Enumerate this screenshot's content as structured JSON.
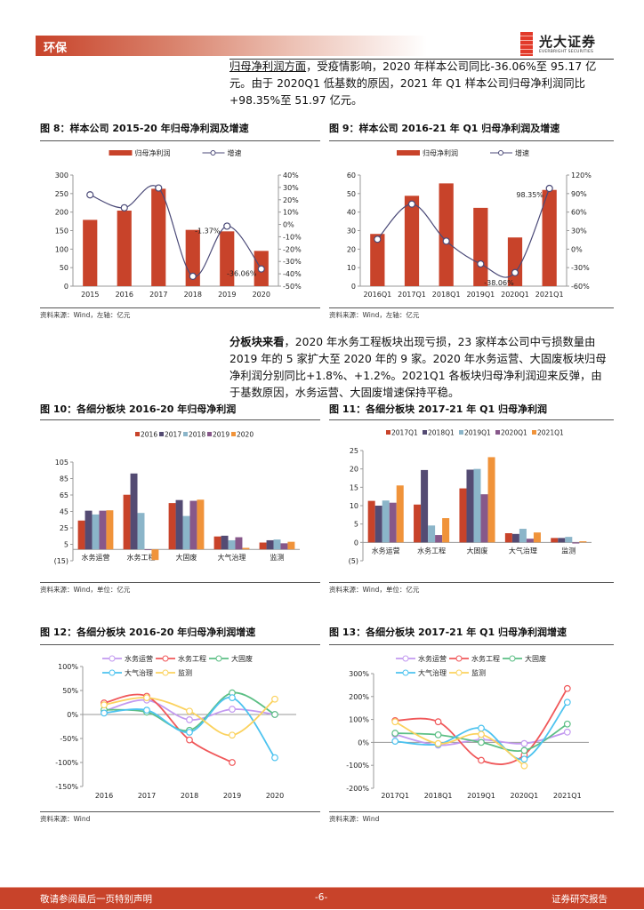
{
  "header": {
    "section": "环保",
    "logo_cn": "光大证券",
    "logo_en": "EVERBRIGHT SECURITIES"
  },
  "paragraph1": {
    "lead": "归母净利润方面",
    "text": "，受疫情影响，2020 年样本公司同比-36.06%至 95.17 亿元。由于 2020Q1 低基数的原因，2021 年 Q1 样本公司归母净利润同比+98.35%至 51.97 亿元。"
  },
  "paragraph2": {
    "lead": "分板块来看",
    "text": "，2020 年水务工程板块出现亏损，23 家样本公司中亏损数量由 2019 年的 5 家扩大至 2020 年的 9 家。2020 年水务运营、大固废板块归母净利润分别同比+1.8%、+1.2%。2021Q1 各板块归母净利润迎来反弹，由于基数原因，水务运营、大固废增速保持平稳。"
  },
  "figures": [
    {
      "title": "图 8：样本公司 2015-20 年归母净利润及增速",
      "source": "资料来源：Wind，左轴：亿元"
    },
    {
      "title": "图 9：样本公司 2016-21 年 Q1 归母净利润及增速",
      "source": "资料来源：Wind，左轴：亿元"
    },
    {
      "title": "图 10：各细分板块 2016-20 年归母净利润",
      "source": "资料来源：Wind，单位：亿元"
    },
    {
      "title": "图 11：各细分板块 2017-21 年 Q1 归母净利润",
      "source": "资料来源：Wind，单位：亿元"
    },
    {
      "title": "图 12：各细分板块 2016-20 年归母净利润增速",
      "source": "资料来源：Wind"
    },
    {
      "title": "图 13：各细分板块 2017-21 年 Q1 归母净利润增速",
      "source": "资料来源：Wind"
    }
  ],
  "chart_data": [
    {
      "type": "bar+line",
      "categories": [
        "2015",
        "2016",
        "2017",
        "2018",
        "2019",
        "2020"
      ],
      "series": [
        {
          "name": "归母净利润",
          "kind": "bar",
          "axis": "left",
          "color": "#c8432a",
          "values": [
            179,
            204,
            263,
            152,
            148,
            95.17
          ]
        },
        {
          "name": "增速",
          "kind": "line",
          "axis": "right",
          "color": "#4b4a78",
          "values": [
            24,
            13.5,
            29.5,
            -42,
            -1.37,
            -36.06
          ]
        }
      ],
      "left_axis": {
        "range": [
          0,
          300
        ],
        "ticks": [
          "0",
          "50",
          "100",
          "150",
          "200",
          "250",
          "300"
        ]
      },
      "right_axis": {
        "range": [
          -50,
          40
        ],
        "ticks": [
          "-50%",
          "-40%",
          "-30%",
          "-20%",
          "-10%",
          "0%",
          "10%",
          "20%",
          "30%",
          "40%"
        ]
      },
      "data_labels": [
        {
          "category": "2019",
          "text": "-1.37%"
        },
        {
          "category": "2020",
          "text": "-36.06%"
        }
      ],
      "legend": "top"
    },
    {
      "type": "bar+line",
      "categories": [
        "2016Q1",
        "2017Q1",
        "2018Q1",
        "2019Q1",
        "2020Q1",
        "2021Q1"
      ],
      "series": [
        {
          "name": "归母净利润",
          "kind": "bar",
          "axis": "left",
          "color": "#c8432a",
          "values": [
            28.2,
            48.8,
            55.5,
            42.3,
            26.3,
            51.97
          ]
        },
        {
          "name": "增速",
          "kind": "line",
          "axis": "right",
          "color": "#4b4a78",
          "values": [
            16,
            73,
            13,
            -24,
            -38.06,
            98.35
          ]
        }
      ],
      "left_axis": {
        "range": [
          0,
          60
        ],
        "ticks": [
          "0",
          "10",
          "20",
          "30",
          "40",
          "50",
          "60"
        ]
      },
      "right_axis": {
        "range": [
          -60,
          120
        ],
        "ticks": [
          "-60%",
          "-30%",
          "0%",
          "30%",
          "60%",
          "90%",
          "120%"
        ]
      },
      "data_labels": [
        {
          "category": "2020Q1",
          "text": "-38.06%"
        },
        {
          "category": "2021Q1",
          "text": "98.35%"
        }
      ],
      "legend": "top"
    },
    {
      "type": "bar",
      "categories": [
        "水务运营",
        "水务工程",
        "大固废",
        "大气治理",
        "监测"
      ],
      "series": [
        {
          "name": "2016",
          "color": "#c8432a",
          "values": [
            38,
            72,
            61,
            17,
            9
          ]
        },
        {
          "name": "2017",
          "color": "#544b73",
          "values": [
            51,
            100,
            65,
            18,
            12
          ]
        },
        {
          "name": "2018",
          "color": "#8bb5c9",
          "values": [
            46,
            48,
            44,
            12,
            13
          ]
        },
        {
          "name": "2019",
          "color": "#87588a",
          "values": [
            51,
            -1,
            64,
            16,
            8
          ]
        },
        {
          "name": "2020",
          "color": "#f0933a",
          "values": [
            51.5,
            -14,
            65.5,
            2,
            10
          ]
        }
      ],
      "y_axis": {
        "range": [
          -15,
          115
        ],
        "ticks": [
          "(15)",
          "5",
          "25",
          "45",
          "65",
          "85",
          "105"
        ]
      },
      "legend": "top"
    },
    {
      "type": "bar",
      "categories": [
        "水务运营",
        "水务工程",
        "大固废",
        "大气治理",
        "监测"
      ],
      "series": [
        {
          "name": "2017Q1",
          "color": "#c8432a",
          "values": [
            11.3,
            10.3,
            14.7,
            2.5,
            1.2
          ]
        },
        {
          "name": "2018Q1",
          "color": "#544b73",
          "values": [
            10,
            19.7,
            19.8,
            2.3,
            1.2
          ]
        },
        {
          "name": "2019Q1",
          "color": "#8bb5c9",
          "values": [
            11.4,
            4.6,
            20,
            3.7,
            1.5
          ]
        },
        {
          "name": "2020Q1",
          "color": "#87588a",
          "values": [
            10.8,
            2,
            13.1,
            1,
            -0.3
          ]
        },
        {
          "name": "2021Q1",
          "color": "#f0933a",
          "values": [
            15.5,
            6.6,
            23.2,
            2.7,
            0.3
          ]
        }
      ],
      "y_axis": {
        "range": [
          -5,
          25
        ],
        "ticks": [
          "(5)",
          "0",
          "5",
          "10",
          "15",
          "20",
          "25"
        ]
      },
      "legend": "top"
    },
    {
      "type": "line",
      "categories": [
        "2016",
        "2017",
        "2018",
        "2019",
        "2020"
      ],
      "series": [
        {
          "name": "水务运营",
          "color": "#c39af0",
          "values": [
            7,
            30,
            -11,
            11,
            0
          ]
        },
        {
          "name": "水务工程",
          "color": "#f0585a",
          "values": [
            24,
            38,
            -53,
            -100,
            null
          ]
        },
        {
          "name": "大固废",
          "color": "#5cbf85",
          "values": [
            10,
            5,
            -33,
            45,
            0
          ]
        },
        {
          "name": "大气治理",
          "color": "#4dc3ef",
          "values": [
            3,
            9,
            -37,
            35,
            -90
          ]
        },
        {
          "name": "监测",
          "color": "#fbd25e",
          "values": [
            20,
            35,
            7,
            -43,
            32
          ]
        }
      ],
      "y_axis": {
        "range": [
          -150,
          100
        ],
        "ticks": [
          "-150%",
          "-100%",
          "-50%",
          "0%",
          "50%",
          "100%"
        ]
      },
      "legend": "top"
    },
    {
      "type": "line",
      "categories": [
        "2017Q1",
        "2018Q1",
        "2019Q1",
        "2020Q1",
        "2021Q1"
      ],
      "series": [
        {
          "name": "水务运营",
          "color": "#c39af0",
          "values": [
            35,
            -12,
            12,
            -5,
            45
          ]
        },
        {
          "name": "水务工程",
          "color": "#f0585a",
          "values": [
            95,
            90,
            -78,
            -55,
            235
          ]
        },
        {
          "name": "大固废",
          "color": "#5cbf85",
          "values": [
            40,
            33,
            0,
            -35,
            80
          ]
        },
        {
          "name": "大气治理",
          "color": "#4dc3ef",
          "values": [
            5,
            -8,
            62,
            -73,
            175
          ]
        },
        {
          "name": "监测",
          "color": "#fbd25e",
          "values": [
            90,
            -5,
            35,
            -102,
            null
          ]
        }
      ],
      "y_axis": {
        "range": [
          -200,
          300
        ],
        "ticks": [
          "-200%",
          "-100%",
          "0%",
          "100%",
          "200%",
          "300%"
        ]
      },
      "legend": "top"
    }
  ],
  "footer": {
    "left": "敬请参阅最后一页特别声明",
    "center": "-6-",
    "right": "证券研究报告"
  }
}
